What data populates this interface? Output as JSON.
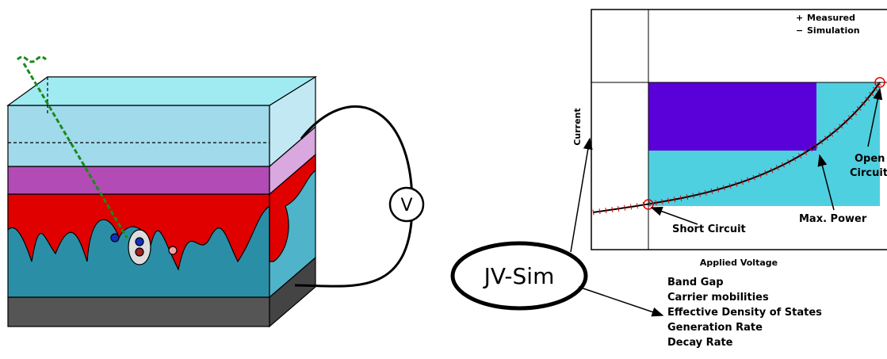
{
  "device": {
    "voltmeter": "V"
  },
  "plot": {
    "y_label": "Current",
    "x_label": "Applied Voltage",
    "legend": [
      "Measured",
      "Simulation"
    ],
    "annotations": {
      "short_circuit": "Short Circuit",
      "max_power": "Max. Power",
      "open": "Open",
      "circuit": "Circuit"
    }
  },
  "simulator": {
    "name": "JV-Sim",
    "parameters": [
      "Band Gap",
      "Carrier mobilities",
      "Effective Density of States",
      "Generation Rate",
      "Decay Rate"
    ]
  }
}
